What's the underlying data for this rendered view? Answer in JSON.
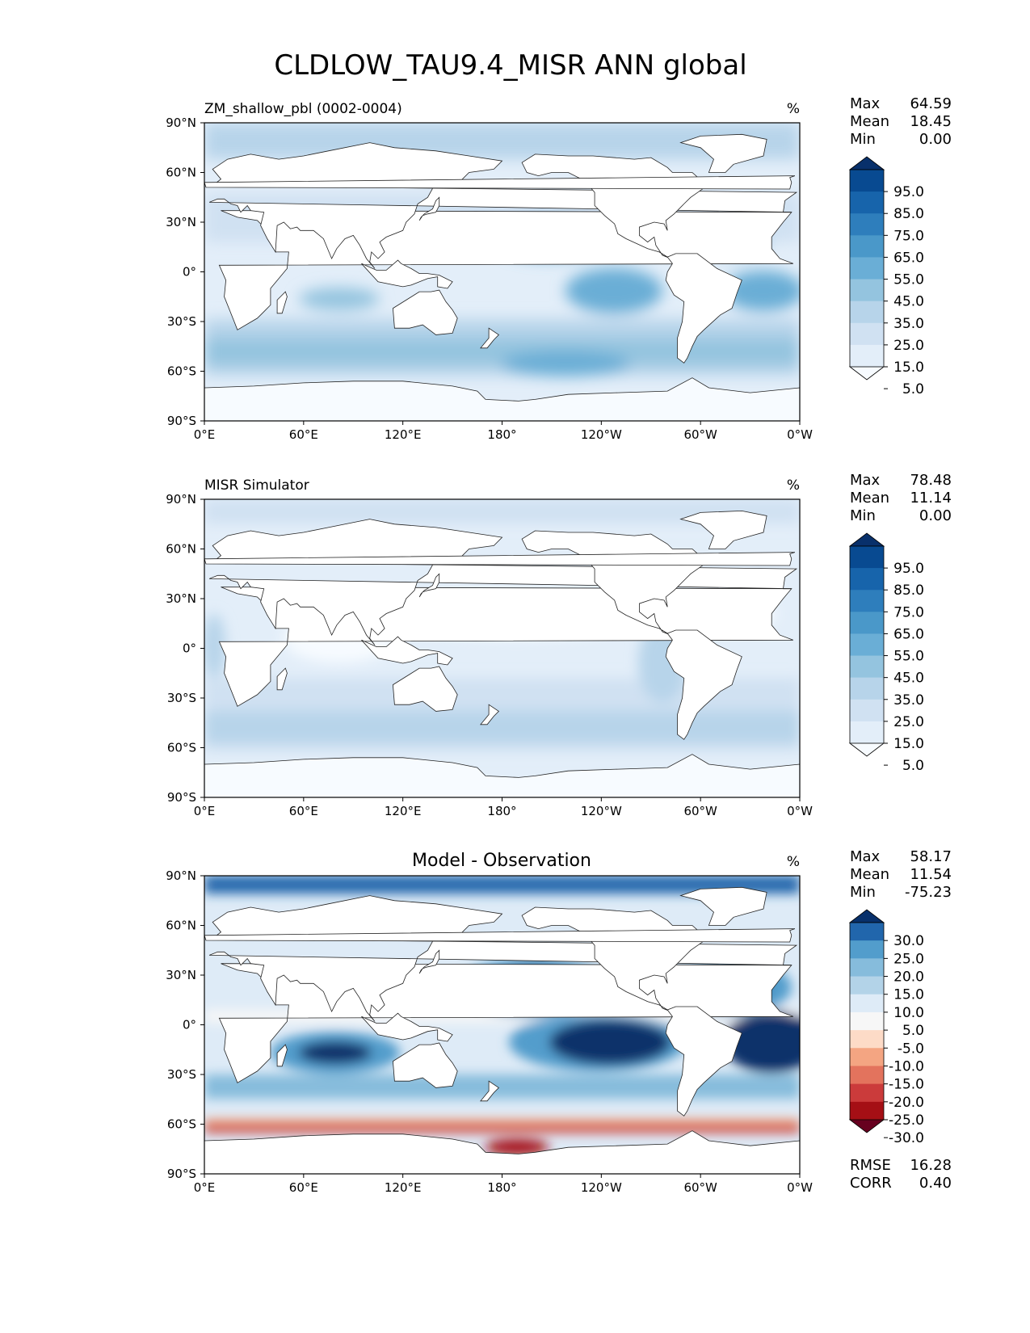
{
  "figure": {
    "title": "CLDLOW_TAU9.4_MISR ANN global"
  },
  "colors": {
    "seq_levels": [
      "#f7fbff",
      "#e3eef9",
      "#d0e1f2",
      "#b7d4ea",
      "#94c4df",
      "#6aaed6",
      "#4a98c9",
      "#2e7ebc",
      "#1764ab",
      "#084a91",
      "#08306b"
    ],
    "div_levels": [
      "#67001f",
      "#a50f15",
      "#cb3b3b",
      "#e3735d",
      "#f4a582",
      "#fddbc7",
      "#f7f7f7",
      "#deebf7",
      "#b3d3e8",
      "#86bcdc",
      "#529dcc",
      "#2166ac",
      "#08306b"
    ],
    "land": "#ffffff",
    "coast": "#222222"
  },
  "chart_data": [
    {
      "type": "heatmap",
      "name": "model",
      "title": "",
      "left_title": "ZM_shallow_pbl (0002-0004)",
      "units": "%",
      "stats": [
        {
          "label": "Max",
          "value": "64.59"
        },
        {
          "label": "Mean",
          "value": "18.45"
        },
        {
          "label": "Min",
          "value": "0.00"
        }
      ],
      "colorbar": {
        "palette": "sequential",
        "ticks": [
          "95.0",
          "85.0",
          "75.0",
          "65.0",
          "55.0",
          "45.0",
          "35.0",
          "25.0",
          "15.0",
          "5.0"
        ],
        "extend": "both"
      },
      "xticks": [
        "0°E",
        "60°E",
        "120°E",
        "180°",
        "120°W",
        "60°W",
        "0°W"
      ],
      "yticks": [
        "90°N",
        "60°N",
        "30°N",
        "0°",
        "30°S",
        "60°S",
        "90°S"
      ],
      "xlim": [
        0,
        360
      ],
      "ylim": [
        -90,
        90
      ]
    },
    {
      "type": "heatmap",
      "name": "obs",
      "title": "",
      "left_title": "MISR Simulator",
      "units": "%",
      "stats": [
        {
          "label": "Max",
          "value": "78.48"
        },
        {
          "label": "Mean",
          "value": "11.14"
        },
        {
          "label": "Min",
          "value": "0.00"
        }
      ],
      "colorbar": {
        "palette": "sequential",
        "ticks": [
          "95.0",
          "85.0",
          "75.0",
          "65.0",
          "55.0",
          "45.0",
          "35.0",
          "25.0",
          "15.0",
          "5.0"
        ],
        "extend": "both"
      },
      "xticks": [
        "0°E",
        "60°E",
        "120°E",
        "180°",
        "120°W",
        "60°W",
        "0°W"
      ],
      "yticks": [
        "90°N",
        "60°N",
        "30°N",
        "0°",
        "30°S",
        "60°S",
        "90°S"
      ],
      "xlim": [
        0,
        360
      ],
      "ylim": [
        -90,
        90
      ]
    },
    {
      "type": "heatmap",
      "name": "diff",
      "title": "Model - Observation",
      "left_title": "",
      "units": "%",
      "stats": [
        {
          "label": "Max",
          "value": "58.17"
        },
        {
          "label": "Mean",
          "value": "11.54"
        },
        {
          "label": "Min",
          "value": "-75.23"
        }
      ],
      "bottom_stats": [
        {
          "label": "RMSE",
          "value": "16.28"
        },
        {
          "label": "CORR",
          "value": "0.40"
        }
      ],
      "colorbar": {
        "palette": "diverging",
        "ticks": [
          "30.0",
          "25.0",
          "20.0",
          "15.0",
          "10.0",
          "5.0",
          "-5.0",
          "-10.0",
          "-15.0",
          "-20.0",
          "-25.0",
          "-30.0"
        ],
        "extend": "both"
      },
      "xticks": [
        "0°E",
        "60°E",
        "120°E",
        "180°",
        "120°W",
        "60°W",
        "0°W"
      ],
      "yticks": [
        "90°N",
        "60°N",
        "30°N",
        "0°",
        "30°S",
        "60°S",
        "90°S"
      ],
      "xlim": [
        0,
        360
      ],
      "ylim": [
        -90,
        90
      ]
    }
  ]
}
